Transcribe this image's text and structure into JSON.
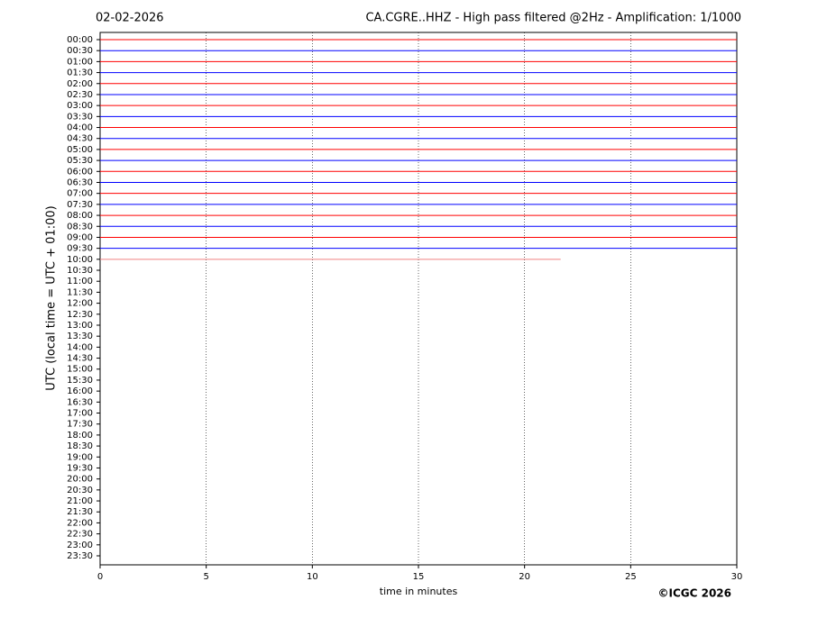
{
  "chart_data": {
    "type": "seismogram",
    "date": "02-02-2026",
    "title": "CA.CGRE..HHZ - High pass filtered @2Hz - Amplification: 1/1000",
    "x_label": "time in minutes",
    "y_label": "UTC (local time = UTC + 01:00)",
    "credit": "©ICGC 2026",
    "xlim": [
      0,
      30
    ],
    "xticks": [
      0,
      5,
      10,
      15,
      20,
      25,
      30
    ],
    "grid": true,
    "categories": [
      "00:00",
      "00:30",
      "01:00",
      "01:30",
      "02:00",
      "02:30",
      "03:00",
      "03:30",
      "04:00",
      "04:30",
      "05:00",
      "05:30",
      "06:00",
      "06:30",
      "07:00",
      "07:30",
      "08:00",
      "08:30",
      "09:00",
      "09:30",
      "10:00",
      "10:30",
      "11:00",
      "11:30",
      "12:00",
      "12:30",
      "13:00",
      "13:30",
      "14:00",
      "14:30",
      "15:00",
      "15:30",
      "16:00",
      "16:30",
      "17:00",
      "17:30",
      "18:00",
      "18:30",
      "19:00",
      "19:30",
      "20:00",
      "20:30",
      "21:00",
      "21:30",
      "22:00",
      "22:30",
      "23:00",
      "23:30"
    ],
    "series": [
      {
        "color": "#ff0000",
        "x": [
          0,
          30
        ]
      },
      {
        "color": "#0000ff",
        "x": [
          0,
          30
        ]
      },
      {
        "color": "#ff0000",
        "x": [
          0,
          30
        ]
      },
      {
        "color": "#0000ff",
        "x": [
          0,
          30
        ]
      },
      {
        "color": "#ff0000",
        "x": [
          0,
          30
        ]
      },
      {
        "color": "#0000ff",
        "x": [
          0,
          30
        ]
      },
      {
        "color": "#ff0000",
        "x": [
          0,
          30
        ]
      },
      {
        "color": "#0000ff",
        "x": [
          0,
          30
        ]
      },
      {
        "color": "#ff0000",
        "x": [
          0,
          30
        ]
      },
      {
        "color": "#0000ff",
        "x": [
          0,
          30
        ]
      },
      {
        "color": "#ff0000",
        "x": [
          0,
          30
        ]
      },
      {
        "color": "#0000ff",
        "x": [
          0,
          30
        ]
      },
      {
        "color": "#ff0000",
        "x": [
          0,
          30
        ]
      },
      {
        "color": "#0000ff",
        "x": [
          0,
          30
        ]
      },
      {
        "color": "#ff0000",
        "x": [
          0,
          30
        ]
      },
      {
        "color": "#0000ff",
        "x": [
          0,
          30
        ]
      },
      {
        "color": "#ff0000",
        "x": [
          0,
          30
        ]
      },
      {
        "color": "#0000ff",
        "x": [
          0,
          30
        ]
      },
      {
        "color": "#ff0000",
        "x": [
          0,
          30
        ]
      },
      {
        "color": "#0000ff",
        "x": [
          0,
          30
        ]
      },
      {
        "color": "#f08080",
        "x": [
          0,
          21.7
        ]
      }
    ]
  }
}
